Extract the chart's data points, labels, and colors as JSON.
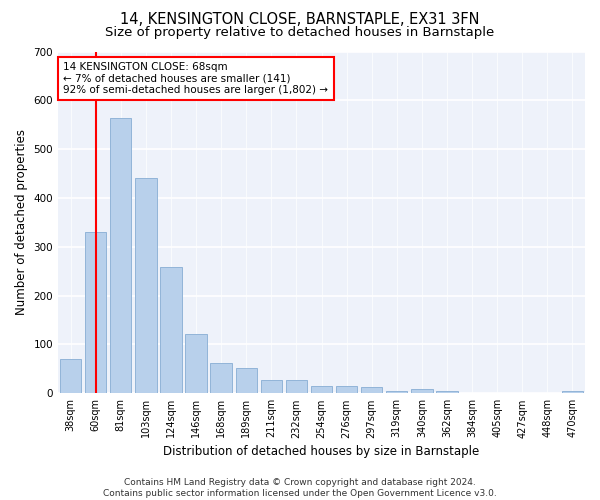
{
  "title": "14, KENSINGTON CLOSE, BARNSTAPLE, EX31 3FN",
  "subtitle": "Size of property relative to detached houses in Barnstaple",
  "xlabel": "Distribution of detached houses by size in Barnstaple",
  "ylabel": "Number of detached properties",
  "categories": [
    "38sqm",
    "60sqm",
    "81sqm",
    "103sqm",
    "124sqm",
    "146sqm",
    "168sqm",
    "189sqm",
    "211sqm",
    "232sqm",
    "254sqm",
    "276sqm",
    "297sqm",
    "319sqm",
    "340sqm",
    "362sqm",
    "384sqm",
    "405sqm",
    "427sqm",
    "448sqm",
    "470sqm"
  ],
  "values": [
    70,
    330,
    563,
    440,
    258,
    122,
    63,
    52,
    28,
    28,
    16,
    16,
    12,
    5,
    8,
    5,
    0,
    0,
    0,
    0,
    5
  ],
  "bar_color": "#b8d0eb",
  "bar_edge_color": "#91b4d8",
  "vline_x": 1.0,
  "vline_color": "red",
  "annotation_text": "14 KENSINGTON CLOSE: 68sqm\n← 7% of detached houses are smaller (141)\n92% of semi-detached houses are larger (1,802) →",
  "annotation_box_color": "white",
  "annotation_box_edge_color": "red",
  "ylim": [
    0,
    700
  ],
  "yticks": [
    0,
    100,
    200,
    300,
    400,
    500,
    600,
    700
  ],
  "footer_line1": "Contains HM Land Registry data © Crown copyright and database right 2024.",
  "footer_line2": "Contains public sector information licensed under the Open Government Licence v3.0.",
  "background_color": "#eef2fa",
  "grid_color": "#ffffff",
  "title_fontsize": 10.5,
  "subtitle_fontsize": 9.5,
  "xlabel_fontsize": 8.5,
  "ylabel_fontsize": 8.5,
  "footer_fontsize": 6.5,
  "tick_fontsize": 7,
  "ann_fontsize": 7.5
}
